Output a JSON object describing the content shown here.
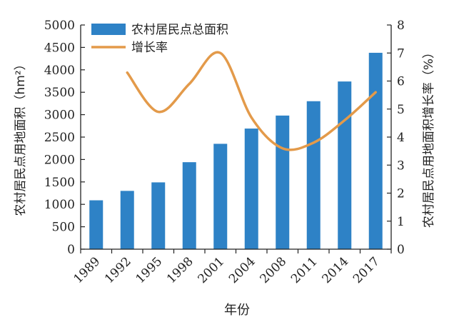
{
  "chart_data": {
    "type": "bar+line",
    "categories": [
      "1989",
      "1992",
      "1995",
      "1998",
      "2001",
      "2004",
      "2008",
      "2011",
      "2014",
      "2017"
    ],
    "series": [
      {
        "name": "农村居民点总面积",
        "type": "bar",
        "axis": "left",
        "color": "#2e82c6",
        "values": [
          1090,
          1300,
          1490,
          1940,
          2350,
          2690,
          2980,
          3300,
          3740,
          4380
        ]
      },
      {
        "name": "增长率",
        "type": "line",
        "axis": "right",
        "color": "#e39a4a",
        "points": [
          {
            "x": "1992",
            "y": 6.3
          },
          {
            "x": "1995",
            "y": 4.9
          },
          {
            "x": "1998",
            "y": 5.9
          },
          {
            "x": "2001",
            "y": 7.0
          },
          {
            "x": "2004",
            "y": 4.7
          },
          {
            "x": "2008",
            "y": 3.6
          },
          {
            "x": "2011",
            "y": 3.8
          },
          {
            "x": "2014",
            "y": 4.6
          },
          {
            "x": "2017",
            "y": 5.6
          }
        ]
      }
    ],
    "xlabel": "年份",
    "ylabel_left": "农村居民点用地面积（hm²）",
    "ylabel_right": "农村居民点用地面积增长率（%）",
    "ylim_left": [
      0,
      5000
    ],
    "yticks_left": [
      "0",
      "500",
      "1000",
      "1500",
      "2000",
      "2500",
      "3000",
      "3500",
      "4000",
      "4500",
      "5000"
    ],
    "ylim_right": [
      0,
      8
    ],
    "yticks_right": [
      "0",
      "1",
      "2",
      "3",
      "4",
      "5",
      "6",
      "7",
      "8"
    ],
    "legend_position": "top-left",
    "grid": false
  }
}
